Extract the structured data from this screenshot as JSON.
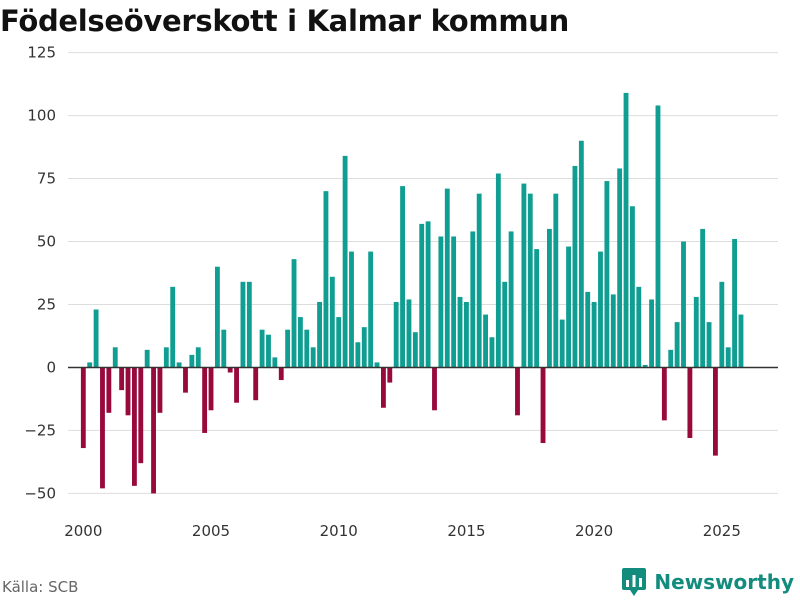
{
  "title": "Födelseöverskott i Kalmar kommun",
  "source": "Källa: SCB",
  "brand": {
    "name": "Newsworthy",
    "icon": "newsworthy-logo-icon"
  },
  "colors": {
    "positive": "#0f9e91",
    "negative": "#990a3c",
    "grid": "#dddddd",
    "zero_line": "#333333",
    "brand": "#138c7e"
  },
  "chart_data": {
    "type": "bar",
    "title": "Födelseöverskott i Kalmar kommun",
    "xlabel": "",
    "ylabel": "",
    "ylim": [
      -55,
      130
    ],
    "xlim": [
      1999.4,
      2027.2
    ],
    "y_ticks": [
      125,
      100,
      75,
      50,
      25,
      0,
      -25,
      -50
    ],
    "y_tick_labels": [
      "125",
      "100",
      "75",
      "50",
      "25",
      "0",
      "−25",
      "−50"
    ],
    "x_ticks": [
      2000,
      2005,
      2010,
      2015,
      2020,
      2025
    ],
    "x_tick_labels": [
      "2000",
      "2005",
      "2010",
      "2015",
      "2020",
      "2025"
    ],
    "grid": true,
    "frequency": "quarterly",
    "start": 2000,
    "values": [
      -32,
      2,
      23,
      -48,
      -18,
      8,
      -9,
      -19,
      -47,
      -38,
      7,
      -50,
      -18,
      8,
      32,
      2,
      -10,
      5,
      8,
      -26,
      -17,
      40,
      15,
      -2,
      -14,
      34,
      34,
      -13,
      15,
      13,
      4,
      -5,
      15,
      43,
      20,
      15,
      8,
      26,
      70,
      36,
      20,
      84,
      46,
      10,
      16,
      46,
      2,
      -16,
      -6,
      26,
      72,
      27,
      14,
      57,
      58,
      -17,
      52,
      71,
      52,
      28,
      26,
      54,
      69,
      21,
      12,
      77,
      34,
      54,
      -19,
      73,
      69,
      47,
      -30,
      55,
      69,
      19,
      48,
      80,
      90,
      30,
      26,
      46,
      74,
      29,
      79,
      109,
      64,
      32,
      1,
      27,
      104,
      -21,
      7,
      18,
      50,
      -28,
      28,
      55,
      18,
      -35,
      34,
      8,
      51,
      21
    ]
  }
}
